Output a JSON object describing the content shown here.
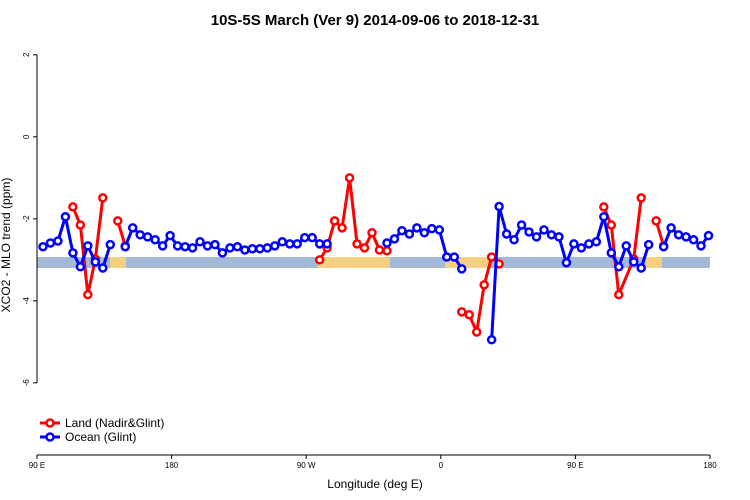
{
  "chart_data": {
    "type": "line",
    "title": "10S-5S March (Ver 9)   2014-09-06 to 2018-12-31",
    "x_label": "Longitude (deg E)",
    "y_label": "XCO2 - MLO trend (ppm)",
    "xlim": [
      90,
      540
    ],
    "xticks": [
      {
        "value": 90,
        "label": "90 E"
      },
      {
        "value": 180,
        "label": "180"
      },
      {
        "value": 270,
        "label": "90 W"
      },
      {
        "value": 360,
        "label": "0"
      },
      {
        "value": 450,
        "label": "90 E"
      },
      {
        "value": 540,
        "label": "180"
      }
    ],
    "ylim": [
      -7.76,
      2.41
    ],
    "yticks": [
      2,
      0,
      -2,
      -4,
      -6
    ],
    "legend": "bottom-left",
    "series": [
      {
        "name": "Land (Nadir&Glint)",
        "color": "#ff0000",
        "x": [
          114,
          119,
          124,
          129,
          134,
          139,
          144,
          149,
          154,
          279,
          284,
          289,
          294,
          299,
          304,
          309,
          314,
          319,
          324,
          329,
          374,
          379,
          384,
          389,
          394,
          399,
          404,
          469,
          474,
          479,
          489,
          494,
          499,
          504,
          509
        ],
        "values": [
          -1.71,
          -2.15,
          -3.85,
          -2.98,
          -1.49,
          null,
          -2.05,
          -2.66,
          null,
          -3.0,
          -2.71,
          -2.05,
          -2.22,
          -1.0,
          -2.61,
          -2.71,
          -2.34,
          -2.76,
          -2.78,
          null,
          -4.27,
          -4.34,
          -4.76,
          -3.61,
          -2.93,
          -3.1,
          null,
          -1.71,
          -2.15,
          -3.85,
          -2.98,
          -1.49,
          null,
          -2.05,
          -2.66
        ]
      },
      {
        "name": "Ocean (Glint)",
        "color": "#0000ff",
        "x": [
          94,
          99,
          104,
          109,
          114,
          119,
          124,
          129,
          134,
          139,
          144,
          149,
          154,
          159,
          164,
          169,
          174,
          179,
          184,
          189,
          194,
          199,
          204,
          209,
          214,
          219,
          224,
          229,
          234,
          239,
          244,
          249,
          254,
          259,
          264,
          269,
          274,
          279,
          284,
          289,
          324,
          329,
          334,
          339,
          344,
          349,
          354,
          359,
          364,
          369,
          374,
          379,
          394,
          399,
          404,
          409,
          414,
          419,
          424,
          429,
          434,
          439,
          444,
          449,
          454,
          459,
          464,
          469,
          474,
          479,
          484,
          489,
          494,
          499,
          504,
          509,
          514,
          519,
          524,
          529,
          534,
          539
        ],
        "values": [
          -2.68,
          -2.59,
          -2.54,
          -1.95,
          -2.83,
          -3.17,
          -2.66,
          -3.05,
          -3.2,
          -2.63,
          null,
          -2.68,
          -2.22,
          -2.39,
          -2.44,
          -2.51,
          -2.66,
          -2.41,
          -2.66,
          -2.68,
          -2.71,
          -2.56,
          -2.66,
          -2.63,
          -2.83,
          -2.71,
          -2.68,
          -2.76,
          -2.73,
          -2.73,
          -2.71,
          -2.66,
          -2.56,
          -2.61,
          -2.61,
          -2.46,
          -2.46,
          -2.61,
          -2.61,
          null,
          -2.59,
          -2.49,
          -2.29,
          -2.37,
          -2.22,
          -2.34,
          -2.24,
          -2.27,
          -2.93,
          -2.93,
          -3.22,
          null,
          -4.95,
          -1.7,
          -2.37,
          -2.51,
          -2.15,
          -2.32,
          -2.44,
          -2.27,
          -2.39,
          -2.44,
          -3.07,
          -2.61,
          -2.71,
          -2.61,
          -2.56,
          -1.95,
          -2.83,
          -3.17,
          -2.66,
          -3.05,
          -3.2,
          -2.63,
          null,
          -2.68,
          -2.22,
          -2.39,
          -2.44,
          -2.51,
          -2.66,
          -2.41
        ]
      }
    ]
  }
}
